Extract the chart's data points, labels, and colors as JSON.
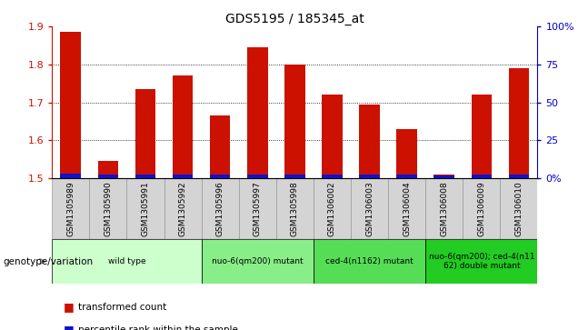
{
  "title": "GDS5195 / 185345_at",
  "samples": [
    "GSM1305989",
    "GSM1305990",
    "GSM1305991",
    "GSM1305992",
    "GSM1305996",
    "GSM1305997",
    "GSM1305998",
    "GSM1306002",
    "GSM1306003",
    "GSM1306004",
    "GSM1306008",
    "GSM1306009",
    "GSM1306010"
  ],
  "red_values": [
    1.885,
    1.545,
    1.735,
    1.77,
    1.665,
    1.845,
    1.8,
    1.72,
    1.695,
    1.63,
    1.51,
    1.72,
    1.79
  ],
  "blue_heights": [
    0.012,
    0.01,
    0.01,
    0.01,
    0.01,
    0.01,
    0.01,
    0.01,
    0.01,
    0.01,
    0.007,
    0.01,
    0.01
  ],
  "ymin": 1.5,
  "ymax": 1.9,
  "y_ticks": [
    1.5,
    1.6,
    1.7,
    1.8,
    1.9
  ],
  "right_y_ticks": [
    0,
    25,
    50,
    75,
    100
  ],
  "right_y_tick_labels": [
    "0%",
    "25",
    "50",
    "75",
    "100%"
  ],
  "groups": [
    {
      "label": "wild type",
      "indices": [
        0,
        1,
        2,
        3
      ],
      "color": "#ccffcc"
    },
    {
      "label": "nuo-6(qm200) mutant",
      "indices": [
        4,
        5,
        6
      ],
      "color": "#88ee88"
    },
    {
      "label": "ced-4(n1162) mutant",
      "indices": [
        7,
        8,
        9
      ],
      "color": "#55dd55"
    },
    {
      "label": "nuo-6(qm200); ced-4(n11\n62) double mutant",
      "indices": [
        10,
        11,
        12
      ],
      "color": "#22cc22"
    }
  ],
  "bar_color_red": "#cc1100",
  "bar_color_blue": "#1111cc",
  "bg_color": "#ffffff",
  "tick_color_left": "#cc1100",
  "tick_color_right": "#0000cc",
  "xlabel_genotype": "genotype/variation",
  "legend_transformed": "transformed count",
  "legend_percentile": "percentile rank within the sample",
  "bar_width": 0.55,
  "cell_bg": "#d4d4d4",
  "cell_edge": "#999999"
}
